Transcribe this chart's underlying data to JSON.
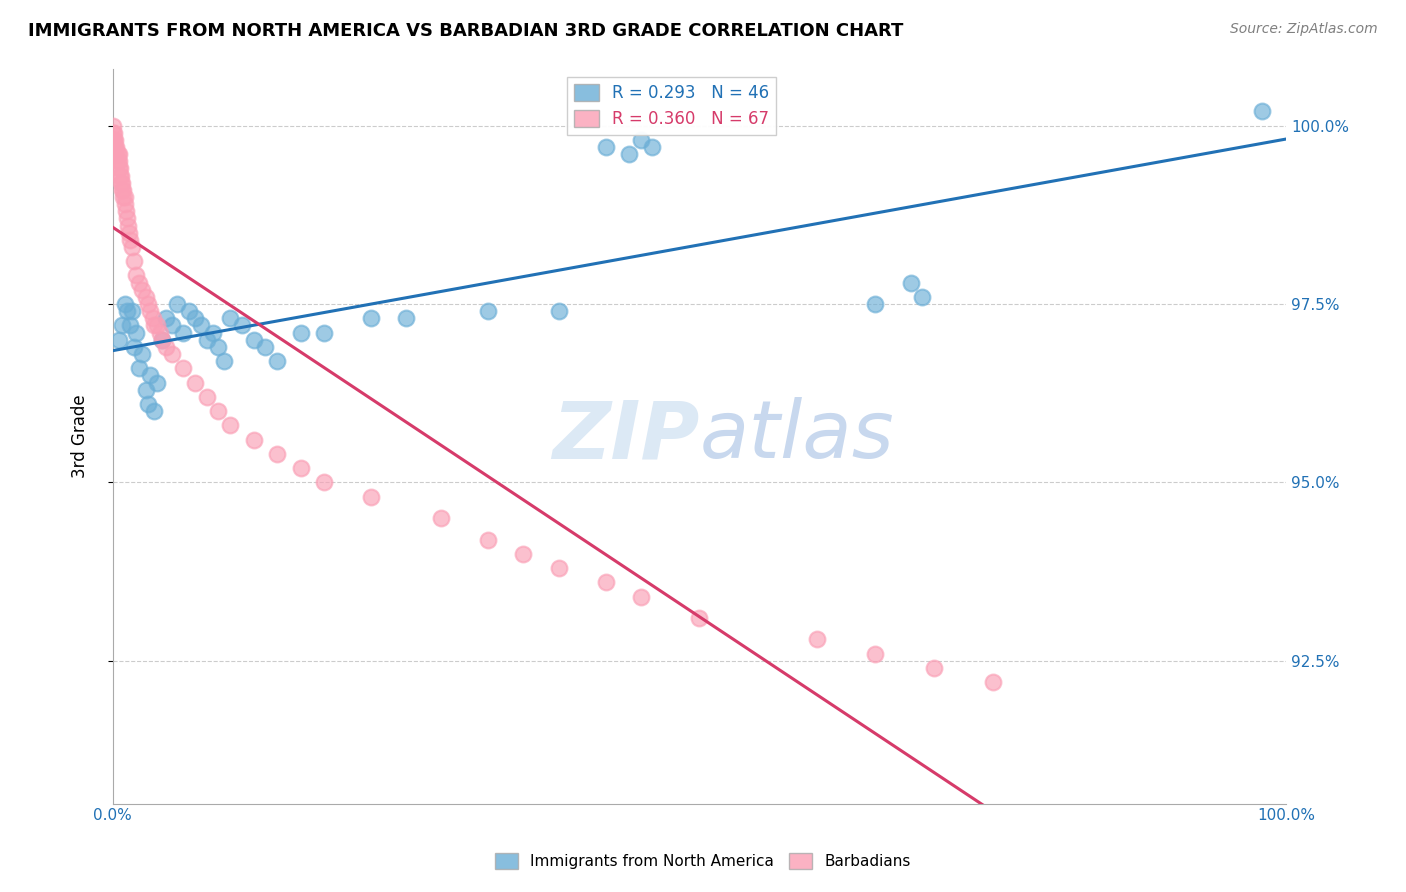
{
  "title": "IMMIGRANTS FROM NORTH AMERICA VS BARBADIAN 3RD GRADE CORRELATION CHART",
  "source": "Source: ZipAtlas.com",
  "xlabel": "",
  "ylabel": "3rd Grade",
  "legend_labels": [
    "Immigrants from North America",
    "Barbadians"
  ],
  "blue_r": 0.293,
  "blue_n": 46,
  "pink_r": 0.36,
  "pink_n": 67,
  "blue_color": "#6baed6",
  "pink_color": "#fa9fb5",
  "blue_line_color": "#2171b5",
  "pink_line_color": "#d63b6a",
  "xlim": [
    0.0,
    1.0
  ],
  "ylim": [
    0.905,
    1.008
  ],
  "yticks": [
    0.925,
    0.95,
    0.975,
    1.0
  ],
  "ytick_labels": [
    "92.5%",
    "95.0%",
    "97.5%",
    "100.0%"
  ],
  "blue_x": [
    0.005,
    0.008,
    0.01,
    0.012,
    0.015,
    0.016,
    0.018,
    0.02,
    0.022,
    0.025,
    0.028,
    0.03,
    0.032,
    0.035,
    0.038,
    0.042,
    0.045,
    0.05,
    0.055,
    0.06,
    0.065,
    0.07,
    0.075,
    0.08,
    0.085,
    0.09,
    0.095,
    0.1,
    0.11,
    0.12,
    0.13,
    0.14,
    0.16,
    0.18,
    0.22,
    0.25,
    0.32,
    0.38,
    0.42,
    0.44,
    0.45,
    0.46,
    0.65,
    0.68,
    0.69,
    0.98
  ],
  "blue_y": [
    0.97,
    0.972,
    0.975,
    0.974,
    0.972,
    0.974,
    0.969,
    0.971,
    0.966,
    0.968,
    0.963,
    0.961,
    0.965,
    0.96,
    0.964,
    0.97,
    0.973,
    0.972,
    0.975,
    0.971,
    0.974,
    0.973,
    0.972,
    0.97,
    0.971,
    0.969,
    0.967,
    0.973,
    0.972,
    0.97,
    0.969,
    0.967,
    0.971,
    0.971,
    0.973,
    0.973,
    0.974,
    0.974,
    0.997,
    0.996,
    0.998,
    0.997,
    0.975,
    0.978,
    0.976,
    1.002
  ],
  "pink_x": [
    0.0,
    0.0,
    0.0,
    0.0,
    0.001,
    0.001,
    0.001,
    0.002,
    0.002,
    0.003,
    0.003,
    0.004,
    0.004,
    0.005,
    0.005,
    0.005,
    0.006,
    0.006,
    0.007,
    0.007,
    0.008,
    0.008,
    0.009,
    0.009,
    0.01,
    0.01,
    0.011,
    0.012,
    0.013,
    0.014,
    0.015,
    0.016,
    0.018,
    0.02,
    0.022,
    0.025,
    0.028,
    0.03,
    0.032,
    0.034,
    0.035,
    0.038,
    0.04,
    0.042,
    0.045,
    0.05,
    0.06,
    0.07,
    0.08,
    0.09,
    0.1,
    0.12,
    0.14,
    0.16,
    0.18,
    0.22,
    0.28,
    0.32,
    0.35,
    0.38,
    0.42,
    0.45,
    0.5,
    0.6,
    0.65,
    0.7,
    0.75
  ],
  "pink_y": [
    0.997,
    0.998,
    0.999,
    1.0,
    0.997,
    0.998,
    0.999,
    0.997,
    0.998,
    0.996,
    0.997,
    0.995,
    0.996,
    0.994,
    0.995,
    0.996,
    0.994,
    0.993,
    0.993,
    0.992,
    0.991,
    0.992,
    0.991,
    0.99,
    0.99,
    0.989,
    0.988,
    0.987,
    0.986,
    0.985,
    0.984,
    0.983,
    0.981,
    0.979,
    0.978,
    0.977,
    0.976,
    0.975,
    0.974,
    0.973,
    0.972,
    0.972,
    0.971,
    0.97,
    0.969,
    0.968,
    0.966,
    0.964,
    0.962,
    0.96,
    0.958,
    0.956,
    0.954,
    0.952,
    0.95,
    0.948,
    0.945,
    0.942,
    0.94,
    0.938,
    0.936,
    0.934,
    0.931,
    0.928,
    0.926,
    0.924,
    0.922
  ],
  "watermark_zip": "ZIP",
  "watermark_atlas": "atlas",
  "watermark_color": "#dce9f5"
}
